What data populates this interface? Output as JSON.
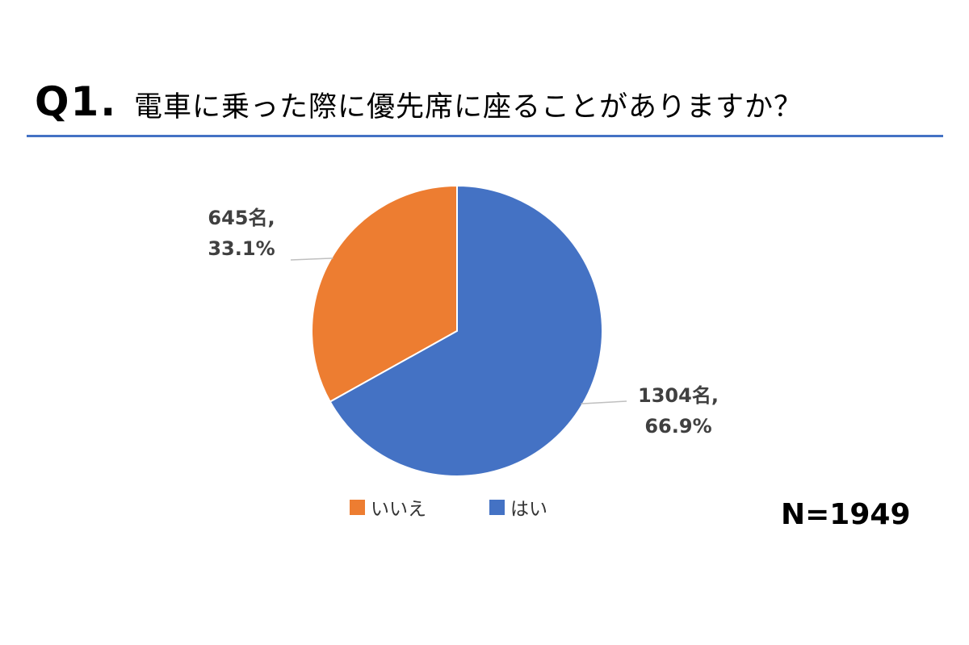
{
  "question": {
    "number": "Q1.",
    "text": "電車に乗った際に優先席に座ることがありますか？"
  },
  "chart_data": {
    "type": "pie",
    "categories": [
      "いいえ",
      "はい"
    ],
    "values": [
      645,
      1304
    ],
    "percentages": [
      33.1,
      66.9
    ],
    "colors": [
      "#ed7d31",
      "#4472c4"
    ],
    "data_labels": [
      {
        "count": "645名,",
        "percent": "33.1%"
      },
      {
        "count": "1304名,",
        "percent": "66.9%"
      }
    ],
    "legend": {
      "position": "bottom",
      "items": [
        {
          "label": "いいえ",
          "color": "#ed7d31"
        },
        {
          "label": "はい",
          "color": "#4472c4"
        }
      ]
    },
    "start_angle": "12 o'clock, clockwise"
  },
  "sample_size": "N=1949"
}
